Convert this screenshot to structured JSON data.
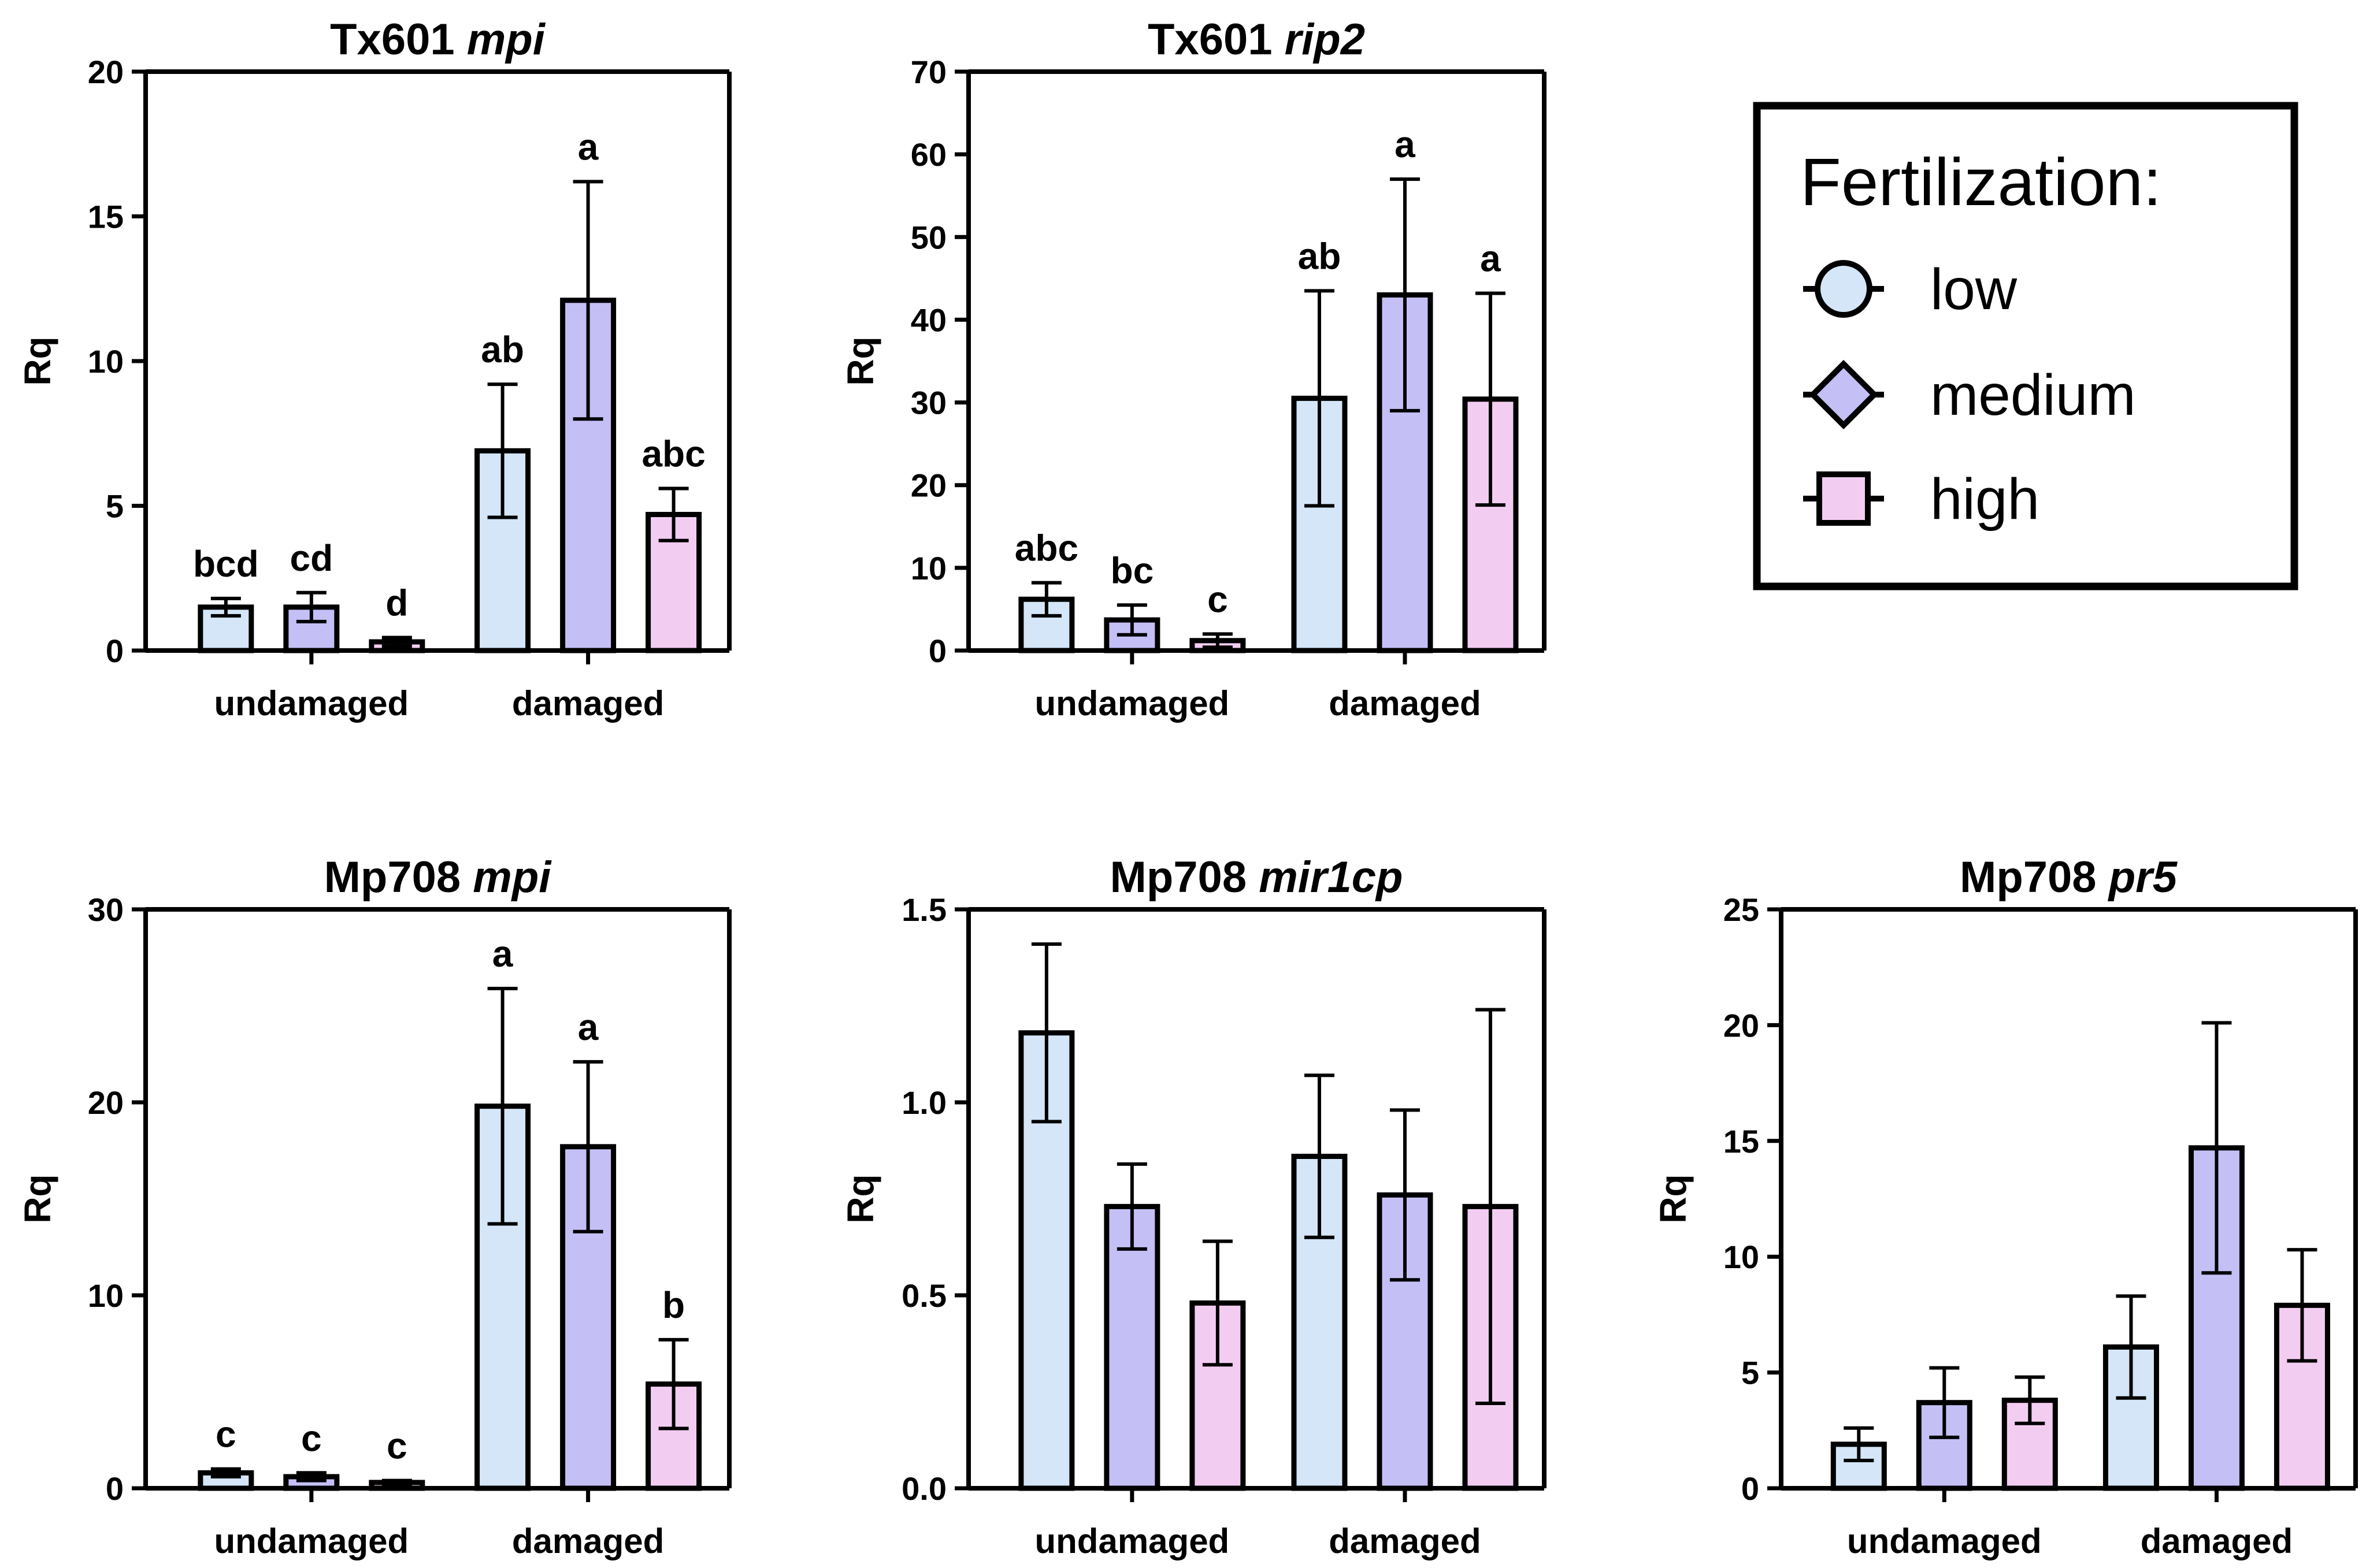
{
  "colors": {
    "low": "#d4e6f8",
    "medium": "#c4c0f6",
    "high": "#f3cdf1",
    "stroke": "#000000"
  },
  "legend": {
    "title": "Fertilization:",
    "entries": [
      {
        "key": "low",
        "label": "low",
        "symbol": "circle"
      },
      {
        "key": "medium",
        "label": "medium",
        "symbol": "diamond"
      },
      {
        "key": "high",
        "label": "high",
        "symbol": "square"
      }
    ]
  },
  "chart_data": [
    {
      "type": "bar",
      "title": "Tx601 ",
      "title_italic": "mpi",
      "ylabel": "Rq",
      "ylim": [
        0,
        20
      ],
      "yticks": [
        "0",
        "5",
        "10",
        "15",
        "20"
      ],
      "ytick_values": [
        0,
        5,
        10,
        15,
        20
      ],
      "categories": [
        "undamaged",
        "damaged"
      ],
      "series": [
        {
          "name": "low",
          "values": [
            1.5,
            6.9
          ],
          "errors": [
            0.3,
            2.3
          ],
          "labels": [
            "bcd",
            "ab"
          ]
        },
        {
          "name": "medium",
          "values": [
            1.5,
            12.1
          ],
          "errors": [
            0.5,
            4.1
          ],
          "labels": [
            "cd",
            "a"
          ]
        },
        {
          "name": "high",
          "values": [
            0.3,
            4.7
          ],
          "errors": [
            0.15,
            0.9
          ],
          "labels": [
            "d",
            "abc"
          ]
        }
      ]
    },
    {
      "type": "bar",
      "title": "Tx601 ",
      "title_italic": "rip2",
      "ylabel": "Rq",
      "ylim": [
        0,
        70
      ],
      "yticks": [
        "0",
        "10",
        "20",
        "30",
        "40",
        "50",
        "60",
        "70"
      ],
      "ytick_values": [
        0,
        10,
        20,
        30,
        40,
        50,
        60,
        70
      ],
      "categories": [
        "undamaged",
        "damaged"
      ],
      "series": [
        {
          "name": "low",
          "values": [
            6.2,
            30.5
          ],
          "errors": [
            2.0,
            13.0
          ],
          "labels": [
            "abc",
            "ab"
          ]
        },
        {
          "name": "medium",
          "values": [
            3.7,
            43.0
          ],
          "errors": [
            1.8,
            14.0
          ],
          "labels": [
            "bc",
            "a"
          ]
        },
        {
          "name": "high",
          "values": [
            1.2,
            30.4
          ],
          "errors": [
            0.8,
            12.8
          ],
          "labels": [
            "c",
            "a"
          ]
        }
      ]
    },
    {
      "type": "bar",
      "title": "Mp708 ",
      "title_italic": "mpi",
      "ylabel": "Rq",
      "ylim": [
        0,
        30
      ],
      "yticks": [
        "0",
        "10",
        "20",
        "30"
      ],
      "ytick_values": [
        0,
        10,
        20,
        30
      ],
      "categories": [
        "undamaged",
        "damaged"
      ],
      "series": [
        {
          "name": "low",
          "values": [
            0.8,
            19.8
          ],
          "errors": [
            0.2,
            6.1
          ],
          "labels": [
            "c",
            "a"
          ]
        },
        {
          "name": "medium",
          "values": [
            0.6,
            17.7
          ],
          "errors": [
            0.2,
            4.4
          ],
          "labels": [
            "c",
            "a"
          ]
        },
        {
          "name": "high",
          "values": [
            0.3,
            5.4
          ],
          "errors": [
            0.1,
            2.3
          ],
          "labels": [
            "c",
            "b"
          ]
        }
      ]
    },
    {
      "type": "bar",
      "title": "Mp708 ",
      "title_italic": "mir1cp",
      "ylabel": "Rq",
      "ylim": [
        0,
        1.5
      ],
      "yticks": [
        "0.0",
        "0.5",
        "1.0",
        "1.5"
      ],
      "ytick_values": [
        0,
        0.5,
        1.0,
        1.5
      ],
      "categories": [
        "undamaged",
        "damaged"
      ],
      "series": [
        {
          "name": "low",
          "values": [
            1.18,
            0.86
          ],
          "errors": [
            0.23,
            0.21
          ],
          "labels": [
            "",
            ""
          ]
        },
        {
          "name": "medium",
          "values": [
            0.73,
            0.76
          ],
          "errors": [
            0.11,
            0.22
          ],
          "labels": [
            "",
            ""
          ]
        },
        {
          "name": "high",
          "values": [
            0.48,
            0.73
          ],
          "errors": [
            0.16,
            0.51
          ],
          "labels": [
            "",
            ""
          ]
        }
      ]
    },
    {
      "type": "bar",
      "title": "Mp708 ",
      "title_italic": "pr5",
      "ylabel": "Rq",
      "ylim": [
        0,
        25
      ],
      "yticks": [
        "0",
        "5",
        "10",
        "15",
        "20",
        "25"
      ],
      "ytick_values": [
        0,
        5,
        10,
        15,
        20,
        25
      ],
      "categories": [
        "undamaged",
        "damaged"
      ],
      "series": [
        {
          "name": "low",
          "values": [
            1.9,
            6.1
          ],
          "errors": [
            0.7,
            2.2
          ],
          "labels": [
            "",
            ""
          ]
        },
        {
          "name": "medium",
          "values": [
            3.7,
            14.7
          ],
          "errors": [
            1.5,
            5.4
          ],
          "labels": [
            "",
            ""
          ]
        },
        {
          "name": "high",
          "values": [
            3.8,
            7.9
          ],
          "errors": [
            1.0,
            2.4
          ],
          "labels": [
            "",
            ""
          ]
        }
      ]
    }
  ]
}
